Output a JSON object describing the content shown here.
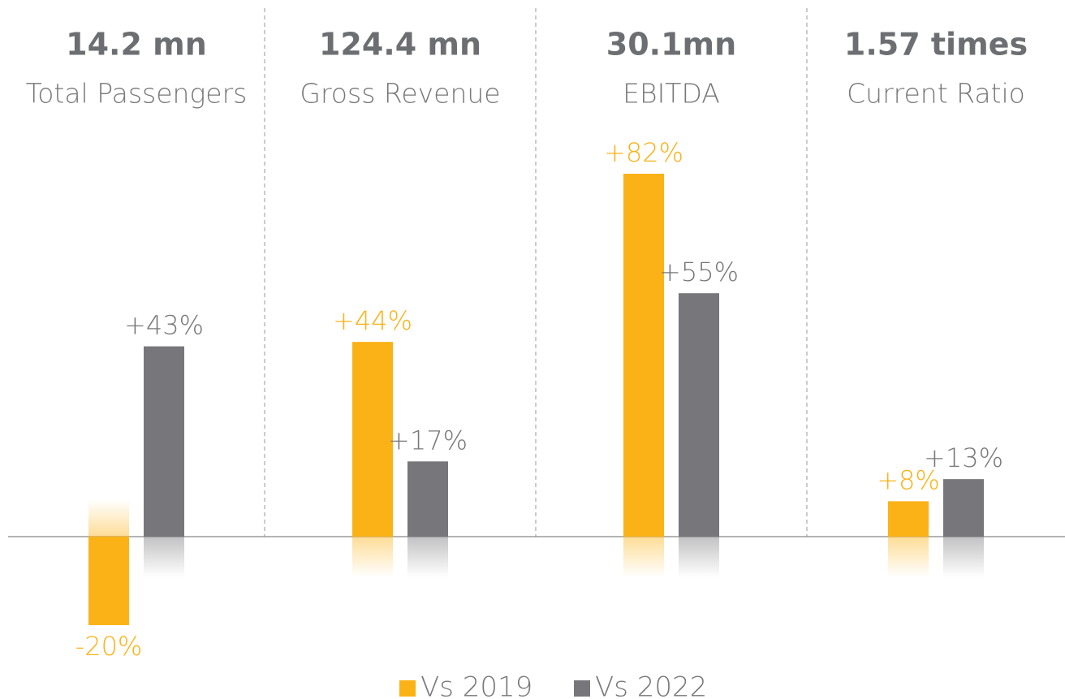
{
  "chart_data": {
    "type": "bar",
    "headlines": [
      "14.2 mn",
      "124.4 mn",
      "30.1mn",
      "1.57 times"
    ],
    "categories": [
      "Total Passengers",
      "Gross Revenue",
      "EBITDA",
      "Current Ratio"
    ],
    "series": [
      {
        "name": "Vs 2019",
        "color": "#fbb217",
        "values": [
          -20,
          44,
          82,
          8
        ],
        "value_labels": [
          "-20%",
          "+44%",
          "+82%",
          "+8%"
        ]
      },
      {
        "name": "Vs 2022",
        "color": "#77777b",
        "values": [
          43,
          17,
          55,
          13
        ],
        "value_labels": [
          "+43%",
          "+17%",
          "+55%",
          "+13%"
        ]
      }
    ]
  }
}
